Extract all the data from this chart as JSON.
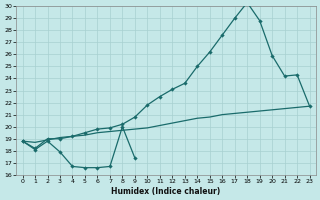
{
  "xlabel": "Humidex (Indice chaleur)",
  "background_color": "#c5e8e8",
  "grid_color": "#a8d0d0",
  "line_color": "#1a6b6b",
  "line1_x": [
    0,
    1,
    2,
    3,
    4,
    5,
    6,
    7,
    8,
    9
  ],
  "line1_y": [
    18.8,
    18.1,
    18.8,
    17.9,
    16.7,
    16.6,
    16.6,
    16.7,
    20.0,
    17.4
  ],
  "line2_x": [
    0,
    1,
    2,
    3,
    4,
    5,
    6,
    7,
    8,
    9,
    10,
    11,
    12,
    13,
    14,
    15,
    16,
    17,
    18,
    19,
    20,
    21,
    22,
    23
  ],
  "line2_y": [
    18.8,
    18.7,
    18.9,
    19.1,
    19.2,
    19.3,
    19.5,
    19.6,
    19.7,
    19.8,
    19.9,
    20.1,
    20.3,
    20.5,
    20.7,
    20.8,
    21.0,
    21.1,
    21.2,
    21.3,
    21.4,
    21.5,
    21.6,
    21.7
  ],
  "line3_x": [
    0,
    1,
    2,
    3,
    4,
    5,
    6,
    7,
    8,
    9,
    10,
    11,
    12,
    13,
    14,
    15,
    16,
    17,
    18,
    19,
    20,
    21,
    22,
    23
  ],
  "line3_y": [
    18.8,
    18.2,
    19.0,
    19.0,
    19.2,
    19.5,
    19.8,
    19.9,
    20.2,
    20.8,
    21.8,
    22.5,
    23.1,
    23.6,
    25.0,
    26.2,
    27.6,
    29.0,
    30.3,
    28.8,
    25.9,
    24.2,
    24.3,
    21.7
  ],
  "ylim": [
    16,
    30
  ],
  "xlim": [
    -0.5,
    23.5
  ],
  "yticks": [
    16,
    17,
    18,
    19,
    20,
    21,
    22,
    23,
    24,
    25,
    26,
    27,
    28,
    29,
    30
  ],
  "xticks": [
    0,
    1,
    2,
    3,
    4,
    5,
    6,
    7,
    8,
    9,
    10,
    11,
    12,
    13,
    14,
    15,
    16,
    17,
    18,
    19,
    20,
    21,
    22,
    23
  ]
}
